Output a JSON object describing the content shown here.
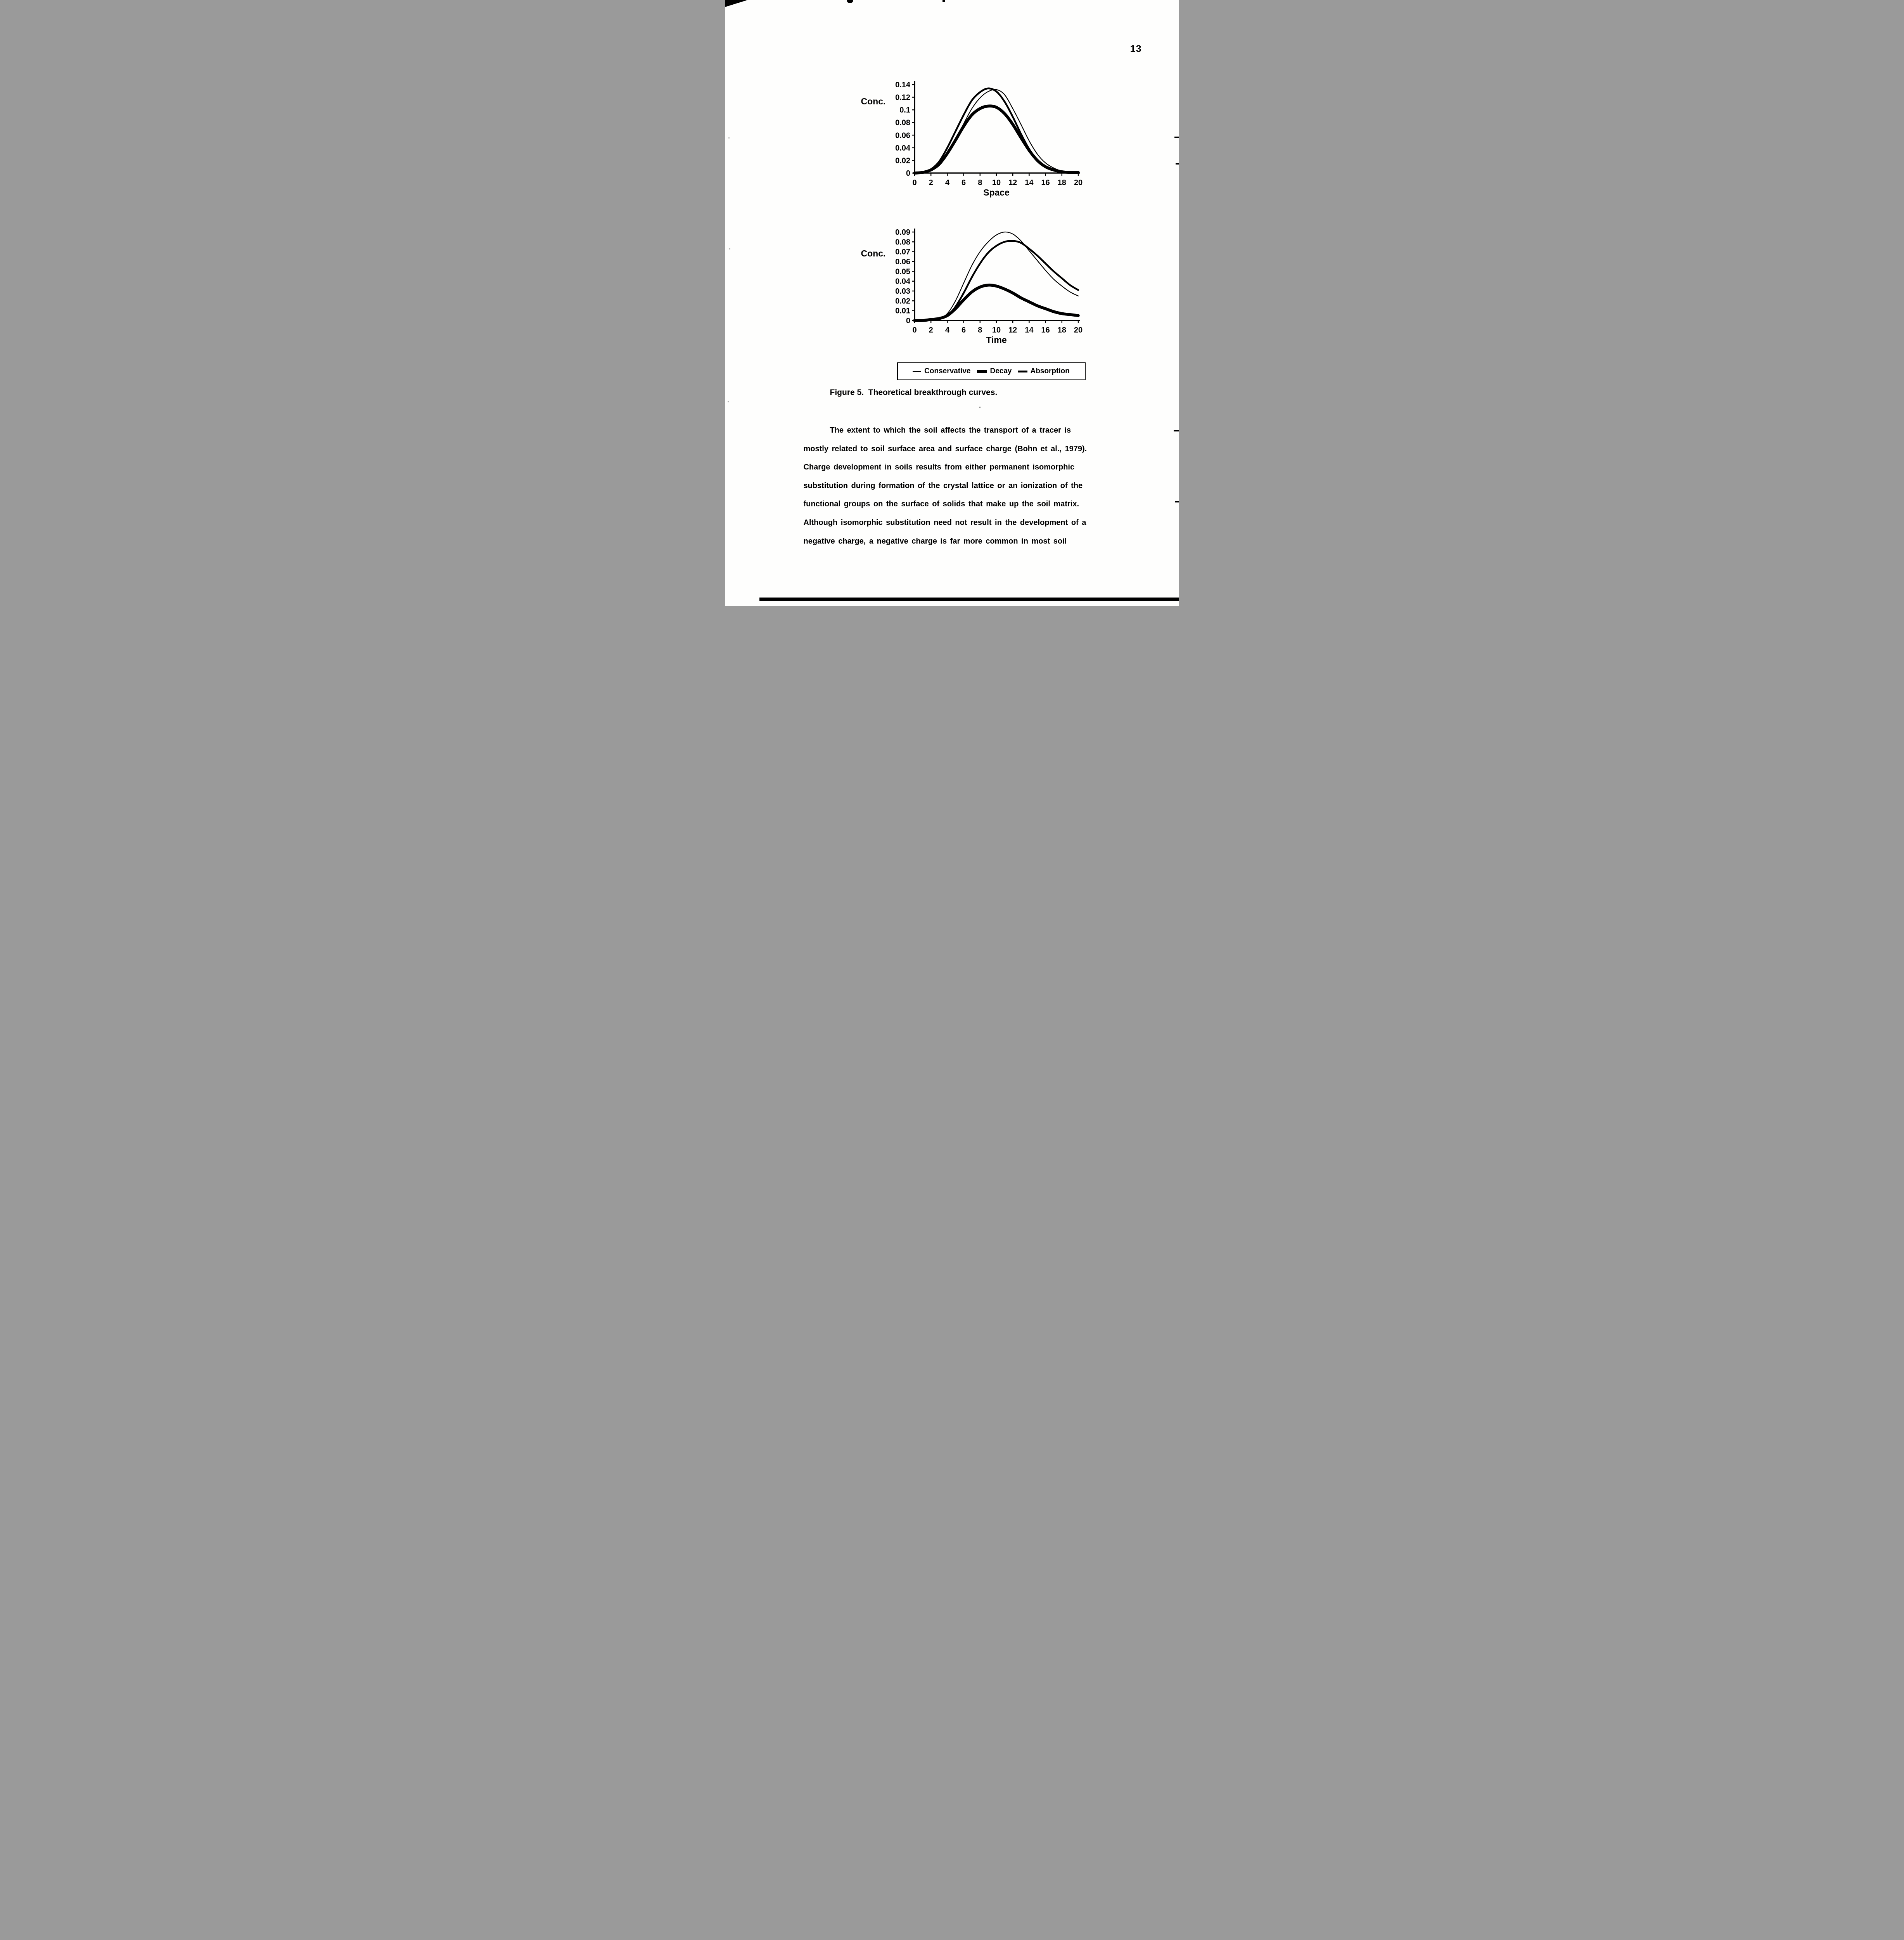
{
  "page": {
    "number": "13"
  },
  "figure": {
    "caption": "Figure 5.  Theoretical breakthrough curves."
  },
  "legend": {
    "items": [
      {
        "label": "Conservative",
        "weight": "thin"
      },
      {
        "label": "Decay",
        "weight": "thick"
      },
      {
        "label": "Absorption",
        "weight": "medium"
      }
    ]
  },
  "chart_data": [
    {
      "type": "line",
      "title": "",
      "xlabel": "Space",
      "ylabel": "Conc.",
      "xlim": [
        0,
        20
      ],
      "ylim": [
        0,
        0.14
      ],
      "xticks": [
        0,
        2,
        4,
        6,
        8,
        10,
        12,
        14,
        16,
        18,
        20
      ],
      "yticks": [
        0,
        0.02,
        0.04,
        0.06,
        0.08,
        0.1,
        0.12,
        0.14
      ],
      "ytick_labels": [
        "0",
        "0.02",
        "0.04",
        "0.06",
        "0.08",
        "0.1",
        "0.12",
        "0.14"
      ],
      "grid": false,
      "legend_position": "below-figure",
      "series": [
        {
          "name": "Conservative",
          "weight": "thin",
          "points": [
            [
              0,
              0
            ],
            [
              1,
              0.001
            ],
            [
              2,
              0.004
            ],
            [
              3,
              0.012
            ],
            [
              4,
              0.03
            ],
            [
              5,
              0.052
            ],
            [
              6,
              0.078
            ],
            [
              7,
              0.102
            ],
            [
              8,
              0.119
            ],
            [
              9,
              0.129
            ],
            [
              10,
              0.132
            ],
            [
              11,
              0.124
            ],
            [
              12,
              0.102
            ],
            [
              13,
              0.077
            ],
            [
              14,
              0.051
            ],
            [
              15,
              0.03
            ],
            [
              16,
              0.016
            ],
            [
              17,
              0.008
            ],
            [
              18,
              0.003
            ],
            [
              19,
              0.001
            ],
            [
              20,
              0.001
            ]
          ]
        },
        {
          "name": "Decay",
          "weight": "thick",
          "points": [
            [
              0,
              0
            ],
            [
              1,
              0.001
            ],
            [
              2,
              0.005
            ],
            [
              3,
              0.014
            ],
            [
              4,
              0.031
            ],
            [
              5,
              0.052
            ],
            [
              6,
              0.074
            ],
            [
              7,
              0.092
            ],
            [
              8,
              0.102
            ],
            [
              9,
              0.106
            ],
            [
              10,
              0.104
            ],
            [
              11,
              0.094
            ],
            [
              12,
              0.077
            ],
            [
              13,
              0.056
            ],
            [
              14,
              0.036
            ],
            [
              15,
              0.02
            ],
            [
              16,
              0.01
            ],
            [
              17,
              0.005
            ],
            [
              18,
              0.002
            ],
            [
              19,
              0.001
            ],
            [
              20,
              0.001
            ]
          ]
        },
        {
          "name": "Absorption",
          "weight": "medium",
          "points": [
            [
              0,
              0
            ],
            [
              1,
              0.001
            ],
            [
              2,
              0.006
            ],
            [
              3,
              0.018
            ],
            [
              4,
              0.04
            ],
            [
              5,
              0.066
            ],
            [
              6,
              0.092
            ],
            [
              7,
              0.115
            ],
            [
              8,
              0.128
            ],
            [
              9,
              0.134
            ],
            [
              10,
              0.129
            ],
            [
              11,
              0.113
            ],
            [
              12,
              0.089
            ],
            [
              13,
              0.062
            ],
            [
              14,
              0.038
            ],
            [
              15,
              0.02
            ],
            [
              16,
              0.009
            ],
            [
              17,
              0.004
            ],
            [
              18,
              0.001
            ],
            [
              19,
              0.001
            ],
            [
              20,
              0
            ]
          ]
        }
      ]
    },
    {
      "type": "line",
      "title": "",
      "xlabel": "Time",
      "ylabel": "Conc.",
      "xlim": [
        0,
        20
      ],
      "ylim": [
        0,
        0.09
      ],
      "xticks": [
        0,
        2,
        4,
        6,
        8,
        10,
        12,
        14,
        16,
        18,
        20
      ],
      "yticks": [
        0,
        0.01,
        0.02,
        0.03,
        0.04,
        0.05,
        0.06,
        0.07,
        0.08,
        0.09
      ],
      "ytick_labels": [
        "0",
        "0.01",
        "0.02",
        "0.03",
        "0.04",
        "0.05",
        "0.06",
        "0.07",
        "0.08",
        "0.09"
      ],
      "grid": false,
      "legend_position": "below-figure",
      "series": [
        {
          "name": "Conservative",
          "weight": "thin",
          "points": [
            [
              0,
              0
            ],
            [
              1,
              0
            ],
            [
              2,
              0.001
            ],
            [
              3,
              0.002
            ],
            [
              4,
              0.007
            ],
            [
              5,
              0.02
            ],
            [
              6,
              0.038
            ],
            [
              7,
              0.056
            ],
            [
              8,
              0.07
            ],
            [
              9,
              0.08
            ],
            [
              10,
              0.087
            ],
            [
              11,
              0.09
            ],
            [
              12,
              0.088
            ],
            [
              13,
              0.081
            ],
            [
              14,
              0.071
            ],
            [
              15,
              0.061
            ],
            [
              16,
              0.051
            ],
            [
              17,
              0.042
            ],
            [
              18,
              0.035
            ],
            [
              19,
              0.029
            ],
            [
              20,
              0.025
            ]
          ]
        },
        {
          "name": "Decay",
          "weight": "thick",
          "points": [
            [
              0,
              0
            ],
            [
              1,
              0
            ],
            [
              2,
              0.001
            ],
            [
              3,
              0.002
            ],
            [
              4,
              0.005
            ],
            [
              5,
              0.012
            ],
            [
              6,
              0.021
            ],
            [
              7,
              0.029
            ],
            [
              8,
              0.034
            ],
            [
              9,
              0.036
            ],
            [
              10,
              0.035
            ],
            [
              11,
              0.032
            ],
            [
              12,
              0.028
            ],
            [
              13,
              0.023
            ],
            [
              14,
              0.019
            ],
            [
              15,
              0.015
            ],
            [
              16,
              0.012
            ],
            [
              17,
              0.009
            ],
            [
              18,
              0.007
            ],
            [
              19,
              0.006
            ],
            [
              20,
              0.005
            ]
          ]
        },
        {
          "name": "Absorption",
          "weight": "medium",
          "points": [
            [
              0,
              0
            ],
            [
              1,
              0
            ],
            [
              2,
              0.001
            ],
            [
              3,
              0.002
            ],
            [
              4,
              0.005
            ],
            [
              5,
              0.014
            ],
            [
              6,
              0.028
            ],
            [
              7,
              0.044
            ],
            [
              8,
              0.058
            ],
            [
              9,
              0.069
            ],
            [
              10,
              0.076
            ],
            [
              11,
              0.08
            ],
            [
              12,
              0.081
            ],
            [
              13,
              0.079
            ],
            [
              14,
              0.073
            ],
            [
              15,
              0.066
            ],
            [
              16,
              0.058
            ],
            [
              17,
              0.05
            ],
            [
              18,
              0.043
            ],
            [
              19,
              0.036
            ],
            [
              20,
              0.031
            ]
          ]
        }
      ]
    }
  ],
  "body": {
    "lines": [
      "The extent to which the soil affects the transport of a tracer is",
      "mostly related to soil surface area and surface charge (Bohn et al., 1979).",
      "Charge development in soils results from either permanent isomorphic",
      "substitution during formation of the crystal lattice or an ionization of the",
      "functional groups on the surface of solids that make up the soil matrix.",
      "Although isomorphic substitution need not result in the development of a",
      "negative charge, a negative charge is far more common in most soil"
    ]
  },
  "colors": {
    "ink": "#000000",
    "paper": "#ffffff"
  }
}
